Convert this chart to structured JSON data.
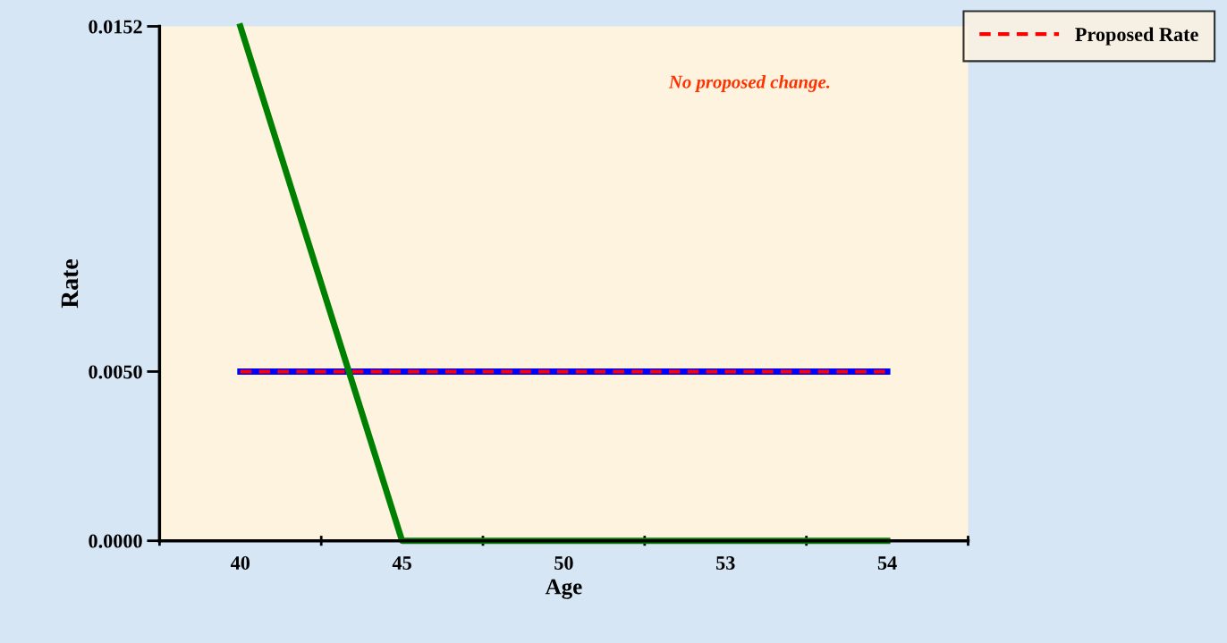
{
  "chart_data": {
    "type": "line",
    "xlabel": "Age",
    "ylabel": "Rate",
    "categories": [
      "40",
      "45",
      "50",
      "53",
      "54"
    ],
    "ylim": [
      0,
      0.0152
    ],
    "yticks": [
      {
        "value": 0,
        "label": "0.0000"
      },
      {
        "value": 0.005,
        "label": "0.0050"
      },
      {
        "value": 0.0152,
        "label": "0.0152"
      }
    ],
    "series": [
      {
        "color": "#0000ff",
        "values": [
          0.005,
          0.005,
          0.005,
          0.005,
          0.005
        ],
        "line_style": "solid"
      },
      {
        "name": "Proposed Rate",
        "color": "#ff0000",
        "values": [
          0.005,
          0.005,
          0.005,
          0.005,
          0.005
        ],
        "line_style": "dashed"
      },
      {
        "color": "#008000",
        "values": [
          0.0152,
          0,
          0,
          0,
          0
        ],
        "line_style": "solid"
      }
    ],
    "annotations": [
      "No proposed change."
    ],
    "legend": "top right",
    "grid": false,
    "marker": "none"
  }
}
